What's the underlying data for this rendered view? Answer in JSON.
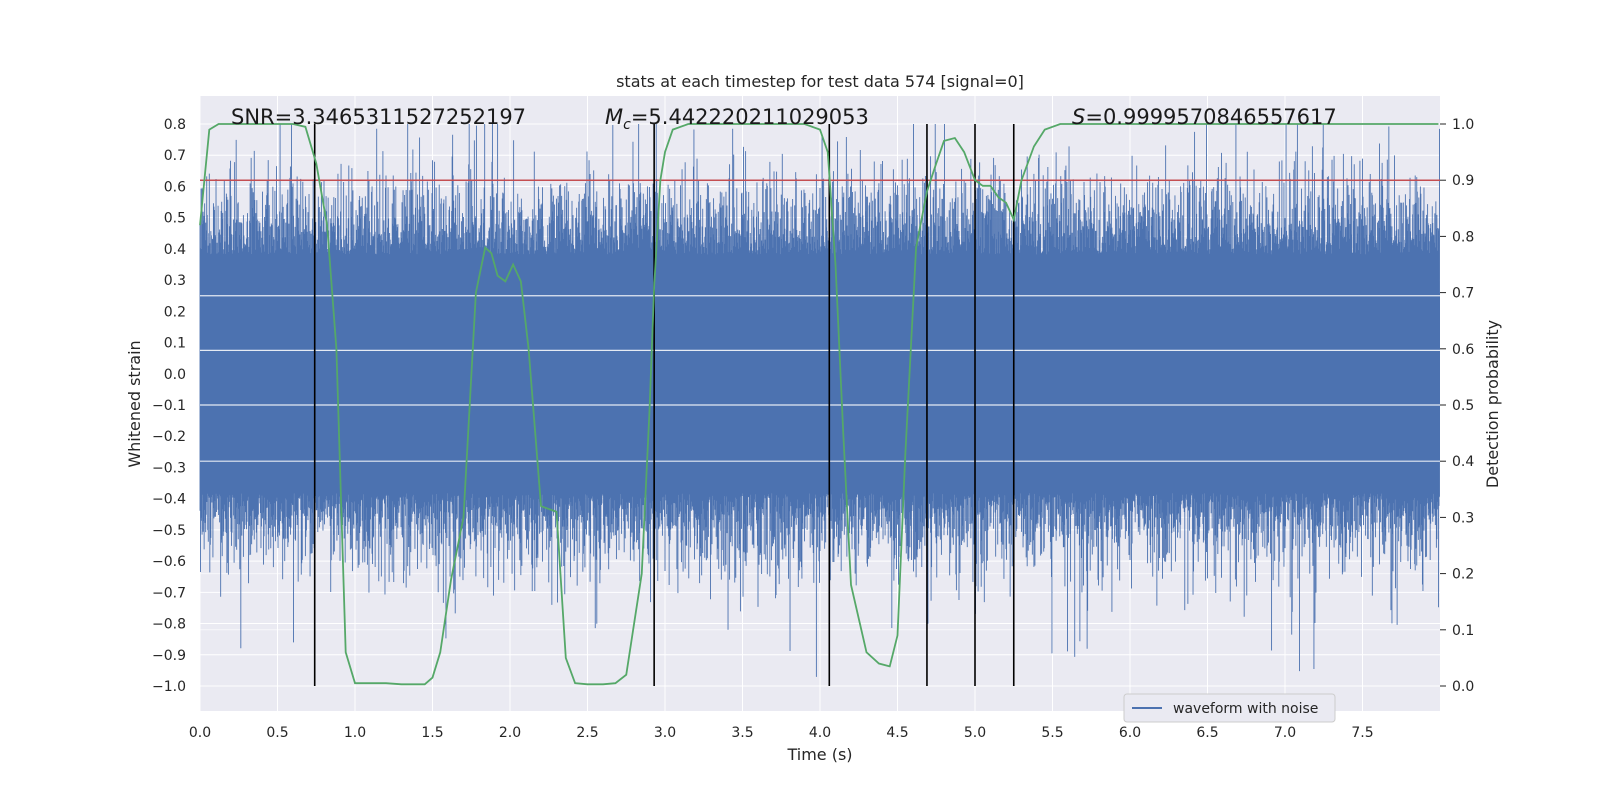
{
  "chart_data": {
    "type": "line",
    "title": "stats at each timestep for test data 574 [signal=0]",
    "xlabel": "Time (s)",
    "ylabel": "Whitened strain",
    "y2label": "Detection probability",
    "xlim": [
      0.0,
      8.0
    ],
    "ylim": [
      -1.0,
      0.8
    ],
    "y2lim": [
      0.0,
      1.0
    ],
    "x_ticks": [
      "0.0",
      "0.5",
      "1.0",
      "1.5",
      "2.0",
      "2.5",
      "3.0",
      "3.5",
      "4.0",
      "4.5",
      "5.0",
      "5.5",
      "6.0",
      "6.5",
      "7.0",
      "7.5"
    ],
    "y_ticks": [
      "0.8",
      "0.7",
      "0.6",
      "0.5",
      "0.4",
      "0.3",
      "0.2",
      "0.1",
      "0.0",
      "−0.1",
      "−0.2",
      "−0.3",
      "−0.4",
      "−0.5",
      "−0.6",
      "−0.7",
      "−0.8",
      "−0.9",
      "−1.0"
    ],
    "y2_ticks": [
      "1.0",
      "0.9",
      "0.8",
      "0.7",
      "0.6",
      "0.5",
      "0.4",
      "0.3",
      "0.2",
      "0.1",
      "0.0"
    ],
    "grid": true,
    "legend": {
      "placement": "lower-right",
      "entries": [
        "waveform with noise"
      ]
    },
    "annotations": {
      "snr": "SNR=3.3465311527252197",
      "mc_symbol": "M",
      "mc_sub": "c",
      "mc_value": "=5.442220211029053",
      "s_symbol": "S",
      "s_value": "=0.9999570846557617"
    },
    "threshold_line": {
      "probability": 0.9,
      "color": "#c44e52"
    },
    "vertical_markers": [
      0.74,
      2.93,
      4.06,
      4.69,
      5.0,
      5.25
    ],
    "series": [
      {
        "name": "waveform with noise",
        "color": "#4c72b0",
        "envelope_hint": {
          "typical_amplitude": 0.45,
          "max": 0.8,
          "min": -1.0
        }
      },
      {
        "color": "#55a868",
        "axis": "right",
        "x": [
          0.0,
          0.06,
          0.12,
          0.2,
          0.3,
          0.4,
          0.5,
          0.6,
          0.68,
          0.75,
          0.82,
          0.88,
          0.94,
          1.0,
          1.1,
          1.2,
          1.3,
          1.4,
          1.45,
          1.5,
          1.55,
          1.62,
          1.7,
          1.78,
          1.84,
          1.88,
          1.92,
          1.97,
          2.02,
          2.07,
          2.12,
          2.2,
          2.3,
          2.36,
          2.42,
          2.5,
          2.6,
          2.68,
          2.75,
          2.85,
          2.9,
          2.93,
          2.97,
          3.0,
          3.05,
          3.15,
          3.3,
          3.5,
          3.7,
          3.9,
          4.0,
          4.05,
          4.1,
          4.15,
          4.2,
          4.3,
          4.38,
          4.45,
          4.5,
          4.55,
          4.62,
          4.69,
          4.75,
          4.8,
          4.87,
          4.93,
          5.0,
          5.05,
          5.1,
          5.15,
          5.2,
          5.25,
          5.3,
          5.38,
          5.45,
          5.55,
          5.7,
          6.0,
          6.5,
          7.0,
          7.5,
          7.99
        ],
        "values": [
          0.82,
          0.99,
          1.0,
          1.0,
          1.0,
          1.0,
          1.0,
          1.0,
          0.995,
          0.93,
          0.82,
          0.6,
          0.06,
          0.005,
          0.005,
          0.005,
          0.003,
          0.003,
          0.003,
          0.015,
          0.06,
          0.19,
          0.3,
          0.7,
          0.78,
          0.77,
          0.73,
          0.72,
          0.75,
          0.72,
          0.6,
          0.32,
          0.31,
          0.05,
          0.005,
          0.003,
          0.003,
          0.005,
          0.02,
          0.2,
          0.49,
          0.71,
          0.9,
          0.95,
          0.99,
          1.0,
          1.0,
          1.0,
          1.0,
          1.0,
          0.99,
          0.95,
          0.75,
          0.45,
          0.18,
          0.06,
          0.04,
          0.035,
          0.09,
          0.41,
          0.78,
          0.88,
          0.93,
          0.97,
          0.975,
          0.95,
          0.9,
          0.89,
          0.89,
          0.87,
          0.86,
          0.83,
          0.9,
          0.96,
          0.99,
          1.0,
          1.0,
          1.0,
          1.0,
          1.0,
          1.0,
          1.0
        ]
      }
    ]
  }
}
